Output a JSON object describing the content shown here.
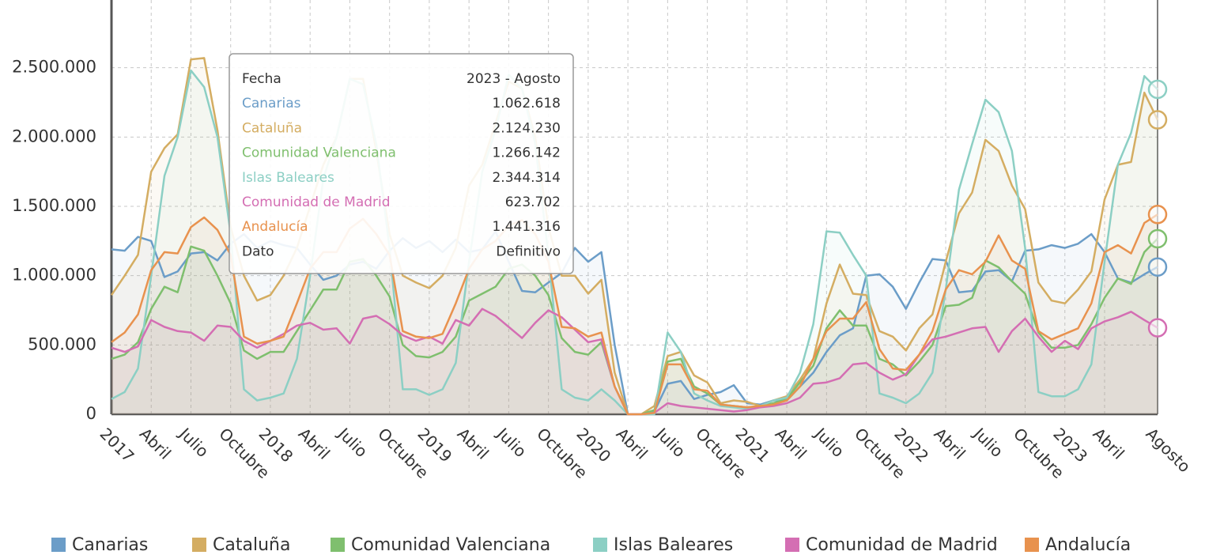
{
  "chart_data": {
    "type": "line",
    "categories": [
      "2017",
      null,
      null,
      "Abril",
      null,
      null,
      "Julio",
      null,
      null,
      "Octubre",
      null,
      null,
      "2018",
      null,
      null,
      "Abril",
      null,
      null,
      "Julio",
      null,
      null,
      "Octubre",
      null,
      null,
      "2019",
      null,
      null,
      "Abril",
      null,
      null,
      "Julio",
      null,
      null,
      "Octubre",
      null,
      null,
      "2020",
      null,
      null,
      "Abril",
      null,
      null,
      "Julio",
      null,
      null,
      "Octubre",
      null,
      null,
      "2021",
      null,
      null,
      "Abril",
      null,
      null,
      "Julio",
      null,
      null,
      "Octubre",
      null,
      null,
      "2022",
      null,
      null,
      "Abril",
      null,
      null,
      "Julio",
      null,
      null,
      "Octubre",
      null,
      null,
      "2023",
      null,
      null,
      "Abril",
      null,
      null,
      null,
      "Agosto"
    ],
    "ylim": [
      0,
      3000000
    ],
    "yticks": [
      0,
      {
        "value": 500000,
        "label": "500.000"
      },
      {
        "value": 1000000,
        "label": "1.000.000"
      },
      {
        "value": 1500000,
        "label": "1.500.000"
      },
      {
        "value": 2000000,
        "label": "2.000.000"
      },
      {
        "value": 2500000,
        "label": "2.500.000"
      }
    ],
    "grid": true,
    "legend": "bottom",
    "series": [
      {
        "name": "Canarias",
        "color": "#6b9dc8",
        "values": [
          1190000,
          1180000,
          1280000,
          1250000,
          990000,
          1030000,
          1160000,
          1170000,
          1110000,
          1230000,
          1300000,
          1200000,
          1250000,
          1220000,
          1200000,
          1080000,
          970000,
          1000000,
          1080000,
          1100000,
          1050000,
          1180000,
          1270000,
          1200000,
          1250000,
          1170000,
          1260000,
          1170000,
          1190000,
          1320000,
          1100000,
          890000,
          880000,
          950000,
          1020000,
          1200000,
          1100000,
          1170000,
          500000,
          0,
          0,
          20000,
          220000,
          240000,
          110000,
          140000,
          160000,
          210000,
          80000,
          70000,
          100000,
          100000,
          200000,
          300000,
          450000,
          570000,
          620000,
          1000000,
          1010000,
          920000,
          760000,
          950000,
          1120000,
          1110000,
          880000,
          890000,
          1030000,
          1040000,
          960000,
          1180000,
          1190000,
          1220000,
          1200000,
          1230000,
          1300000,
          1170000,
          980000,
          950000,
          1010000,
          1062618
        ]
      },
      {
        "name": "Cataluña",
        "color": "#d4ad62",
        "values": [
          860000,
          1000000,
          1150000,
          1750000,
          1920000,
          2020000,
          2560000,
          2570000,
          2050000,
          1350000,
          1000000,
          820000,
          860000,
          1000000,
          1200000,
          1500000,
          1800000,
          2000000,
          2420000,
          2420000,
          1900000,
          1300000,
          1000000,
          950000,
          910000,
          1000000,
          1200000,
          1650000,
          1800000,
          2100000,
          2400000,
          2350000,
          2000000,
          1350000,
          1000000,
          1000000,
          870000,
          970000,
          300000,
          0,
          0,
          60000,
          420000,
          450000,
          280000,
          230000,
          80000,
          100000,
          90000,
          60000,
          100000,
          130000,
          250000,
          400000,
          800000,
          1080000,
          870000,
          860000,
          600000,
          560000,
          460000,
          620000,
          720000,
          1100000,
          1450000,
          1600000,
          1980000,
          1900000,
          1650000,
          1480000,
          950000,
          820000,
          800000,
          900000,
          1030000,
          1550000,
          1800000,
          1820000,
          2320000,
          2124230
        ]
      },
      {
        "name": "Comunidad Valenciana",
        "color": "#7fbf6e",
        "values": [
          400000,
          430000,
          520000,
          760000,
          920000,
          880000,
          1210000,
          1180000,
          1000000,
          800000,
          460000,
          400000,
          450000,
          450000,
          600000,
          750000,
          900000,
          900000,
          1100000,
          1120000,
          1000000,
          850000,
          500000,
          420000,
          410000,
          450000,
          560000,
          820000,
          870000,
          920000,
          1050000,
          1080000,
          1000000,
          860000,
          550000,
          450000,
          430000,
          520000,
          200000,
          0,
          0,
          30000,
          380000,
          400000,
          200000,
          150000,
          70000,
          60000,
          50000,
          60000,
          80000,
          110000,
          230000,
          350000,
          620000,
          750000,
          640000,
          640000,
          400000,
          360000,
          280000,
          380000,
          500000,
          780000,
          790000,
          840000,
          1110000,
          1060000,
          960000,
          870000,
          590000,
          480000,
          480000,
          500000,
          650000,
          840000,
          980000,
          940000,
          1170000,
          1266142
        ]
      },
      {
        "name": "Islas Baleares",
        "color": "#8ccfc4",
        "values": [
          110000,
          160000,
          330000,
          1000000,
          1720000,
          2000000,
          2480000,
          2360000,
          2000000,
          1300000,
          180000,
          100000,
          120000,
          150000,
          400000,
          1000000,
          1700000,
          2000000,
          2420000,
          2380000,
          1950000,
          1200000,
          180000,
          180000,
          140000,
          180000,
          370000,
          1100000,
          1750000,
          2050000,
          2450000,
          2350000,
          1950000,
          1150000,
          180000,
          120000,
          100000,
          180000,
          100000,
          0,
          0,
          0,
          590000,
          450000,
          150000,
          100000,
          60000,
          50000,
          40000,
          60000,
          100000,
          120000,
          300000,
          650000,
          1320000,
          1310000,
          1150000,
          1000000,
          150000,
          120000,
          80000,
          150000,
          300000,
          900000,
          1620000,
          1950000,
          2270000,
          2180000,
          1900000,
          1200000,
          160000,
          130000,
          130000,
          180000,
          360000,
          1100000,
          1800000,
          2030000,
          2440000,
          2344314
        ]
      },
      {
        "name": "Comunidad de Madrid",
        "color": "#d46eb3",
        "values": [
          480000,
          450000,
          490000,
          680000,
          630000,
          600000,
          590000,
          530000,
          640000,
          630000,
          530000,
          480000,
          530000,
          580000,
          640000,
          660000,
          610000,
          620000,
          510000,
          690000,
          710000,
          650000,
          570000,
          530000,
          560000,
          510000,
          680000,
          640000,
          760000,
          710000,
          630000,
          550000,
          660000,
          750000,
          700000,
          610000,
          520000,
          540000,
          200000,
          0,
          0,
          10000,
          80000,
          60000,
          50000,
          40000,
          30000,
          20000,
          30000,
          50000,
          60000,
          80000,
          120000,
          220000,
          230000,
          260000,
          360000,
          370000,
          300000,
          250000,
          290000,
          430000,
          540000,
          560000,
          590000,
          620000,
          630000,
          450000,
          600000,
          690000,
          560000,
          450000,
          530000,
          470000,
          620000,
          670000,
          700000,
          740000,
          680000,
          623702
        ]
      },
      {
        "name": "Andalucía",
        "color": "#e8924e",
        "values": [
          520000,
          590000,
          720000,
          1040000,
          1170000,
          1160000,
          1350000,
          1420000,
          1330000,
          1150000,
          560000,
          510000,
          530000,
          560000,
          800000,
          1050000,
          1170000,
          1170000,
          1340000,
          1410000,
          1300000,
          1150000,
          600000,
          560000,
          550000,
          580000,
          800000,
          1050000,
          1190000,
          1250000,
          1360000,
          1400000,
          1300000,
          1100000,
          630000,
          620000,
          560000,
          590000,
          200000,
          0,
          0,
          10000,
          360000,
          360000,
          180000,
          170000,
          70000,
          60000,
          50000,
          60000,
          70000,
          100000,
          200000,
          400000,
          600000,
          690000,
          690000,
          810000,
          470000,
          330000,
          320000,
          430000,
          600000,
          900000,
          1040000,
          1010000,
          1100000,
          1290000,
          1110000,
          1050000,
          600000,
          540000,
          580000,
          620000,
          800000,
          1170000,
          1220000,
          1160000,
          1380000,
          1441316
        ]
      }
    ],
    "tooltip": {
      "header": [
        "Fecha",
        "2023 - Agosto"
      ],
      "value_labels": [
        "1.062.618",
        "2.124.230",
        "1.266.142",
        "2.344.314",
        "623.702",
        "1.441.316"
      ],
      "footer": [
        "Dato",
        "Definitivo"
      ]
    }
  }
}
